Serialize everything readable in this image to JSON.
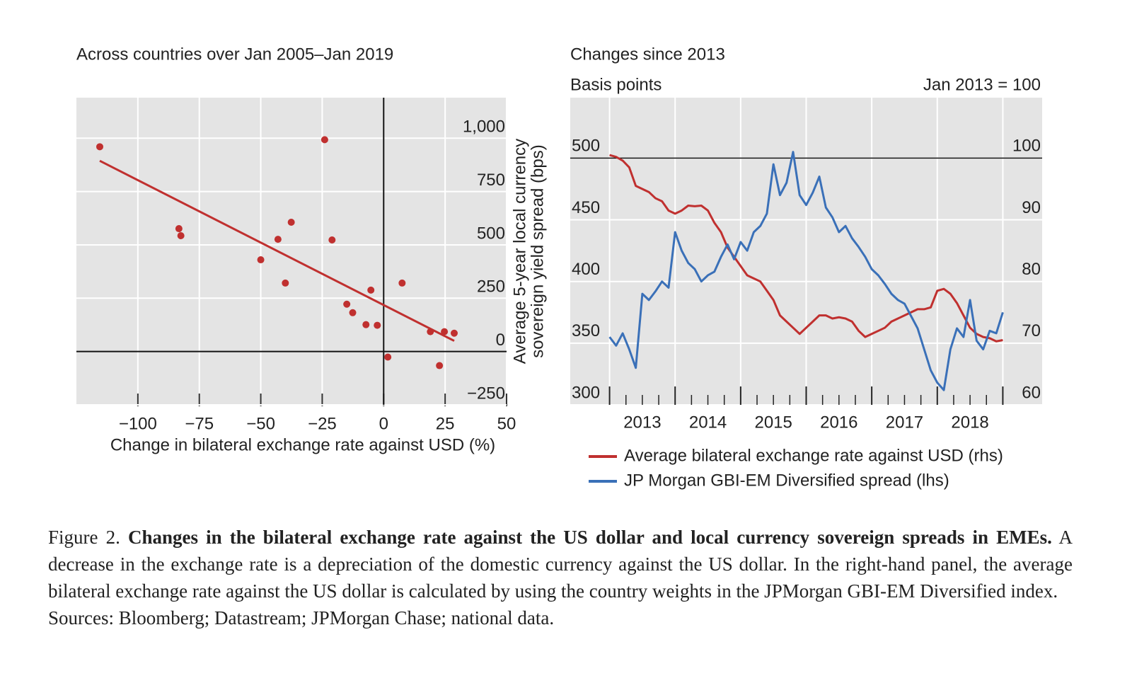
{
  "chart_data": [
    {
      "type": "scatter",
      "title": "Across countries over Jan 2005–Jan 2019",
      "xlabel": "Change in bilateral exchange rate against USD (%)",
      "ylabel": [
        "Average 5-year local currency",
        "sovereign yield spread (bps)"
      ],
      "x": [
        -115.5,
        -83.3,
        -82.5,
        -50,
        -43,
        -40,
        -37.6,
        -24,
        -21,
        -15,
        -12.6,
        -7.2,
        -5.2,
        -2.6,
        1.7,
        7.5,
        19,
        22.7,
        24.7,
        28.7
      ],
      "values": [
        960,
        576,
        543,
        430,
        526,
        321,
        606,
        993,
        523,
        222,
        182,
        126,
        288,
        123,
        -26,
        321,
        93,
        -66,
        93,
        86
      ],
      "color": "#c0302f",
      "trend_line": {
        "x": [
          -115.5,
          28.7
        ],
        "y": [
          894,
          50
        ]
      },
      "xlim": [
        -125,
        50
      ],
      "ylim": [
        -250,
        1190
      ],
      "xticks": [
        {
          "value": -100,
          "label": "−100"
        },
        {
          "value": -75,
          "label": "−75"
        },
        {
          "value": -50,
          "label": "−50"
        },
        {
          "value": -25,
          "label": "−25"
        },
        0,
        25,
        50
      ],
      "yticks": [
        {
          "value": -250,
          "label": "−250"
        },
        0,
        250,
        500,
        750,
        {
          "value": 1000,
          "label": "1,000"
        }
      ],
      "grid": true,
      "zero_lines": true
    },
    {
      "type": "line",
      "title": "Changes since 2013",
      "ylabel": "Basis points",
      "y2label": "Jan 2013 = 100",
      "x": [
        2013.0,
        2013.1,
        2013.2,
        2013.3,
        2013.4,
        2013.5,
        2013.6,
        2013.7,
        2013.8,
        2013.9,
        2014.0,
        2014.1,
        2014.2,
        2014.3,
        2014.4,
        2014.5,
        2014.6,
        2014.7,
        2014.8,
        2014.9,
        2015.0,
        2015.1,
        2015.2,
        2015.3,
        2015.4,
        2015.5,
        2015.6,
        2015.7,
        2015.8,
        2015.9,
        2016.0,
        2016.1,
        2016.2,
        2016.3,
        2016.4,
        2016.5,
        2016.6,
        2016.7,
        2016.8,
        2016.9,
        2017.0,
        2017.1,
        2017.2,
        2017.3,
        2017.4,
        2017.5,
        2017.6,
        2017.7,
        2017.8,
        2017.9,
        2018.0,
        2018.1,
        2018.2,
        2018.3,
        2018.4,
        2018.5,
        2018.6,
        2018.7,
        2018.8,
        2018.9,
        2019.0
      ],
      "series": [
        {
          "name": "Average bilateral exchange rate against USD (rhs)",
          "color": "#c0302f",
          "axis": "y2",
          "values": [
            100.5,
            100.2,
            99.6,
            98.5,
            95.5,
            95,
            94.5,
            93.5,
            93,
            91.5,
            91,
            91.5,
            92.3,
            92.2,
            92.3,
            91.5,
            89.5,
            88,
            85.5,
            84,
            82.5,
            81,
            80.5,
            80,
            78.5,
            77,
            74.5,
            73.5,
            72.5,
            71.5,
            72.5,
            73.5,
            74.5,
            74.5,
            74,
            74.2,
            74,
            73.5,
            72,
            71,
            71.5,
            72,
            72.5,
            73.5,
            74,
            74.5,
            75,
            75.5,
            75.5,
            75.8,
            78.5,
            78.8,
            78,
            76.5,
            74.5,
            72.5,
            71.5,
            71,
            70.8,
            70.3,
            70.5
          ]
        },
        {
          "name": "JP Morgan GBI-EM Diversified spread (lhs)",
          "color": "#3a70b8",
          "values": [
            355,
            348,
            358,
            345,
            330,
            390,
            385,
            392,
            400,
            395,
            440,
            425,
            415,
            410,
            400,
            405,
            408,
            420,
            430,
            418,
            432,
            425,
            440,
            445,
            455,
            495,
            470,
            480,
            505,
            470,
            462,
            472,
            485,
            460,
            452,
            440,
            445,
            435,
            428,
            420,
            410,
            405,
            398,
            390,
            385,
            382,
            372,
            362,
            345,
            328,
            318,
            312,
            345,
            362,
            355,
            385,
            352,
            345,
            360,
            358,
            375
          ]
        }
      ],
      "xlim": [
        2012.4,
        2019.6
      ],
      "xticks": [
        {
          "value": 2013.5,
          "label": "2013"
        },
        {
          "value": 2014.5,
          "label": "2014"
        },
        {
          "value": 2015.5,
          "label": "2015"
        },
        {
          "value": 2016.5,
          "label": "2016"
        },
        {
          "value": 2017.5,
          "label": "2017"
        },
        {
          "value": 2018.5,
          "label": "2018"
        }
      ],
      "major_ticks": [
        2013,
        2014,
        2015,
        2016,
        2017,
        2018,
        2019
      ],
      "minor_ticks": [
        2013.25,
        2013.5,
        2013.75,
        2014.25,
        2014.5,
        2014.75,
        2015.25,
        2015.5,
        2015.75,
        2016.25,
        2016.5,
        2016.75,
        2017.25,
        2017.5,
        2017.75,
        2018.25,
        2018.5,
        2018.75
      ],
      "ylim": [
        300,
        549
      ],
      "yticks": [
        300,
        350,
        400,
        450,
        500
      ],
      "y2lim": [
        60,
        109.8
      ],
      "y2ticks": [
        60,
        70,
        80,
        90,
        100
      ],
      "reference_line": 500,
      "grid": true
    }
  ],
  "caption": {
    "label": "Figure 2.",
    "title": "Changes in the bilateral exchange rate against the US dollar and local currency sovereign spreads in EMEs.",
    "text": "A decrease in the exchange rate is a depreciation of the domestic currency against the US dollar. In the right-hand panel, the average bilateral exchange rate against the US dollar is calculated by using the country weights in the JPMorgan GBI-EM Diversified index.",
    "sources": "Sources: Bloomberg; Datastream; JPMorgan Chase; national data."
  }
}
